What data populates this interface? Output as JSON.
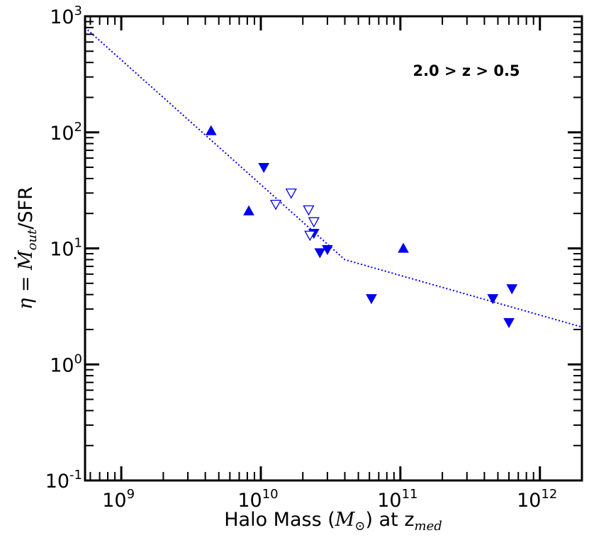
{
  "chart_data": {
    "type": "scatter",
    "title": "",
    "xlabel": {
      "prefix": "Halo Mass (",
      "symbol": "M",
      "sub": "⊙",
      "suffix": ") at z",
      "zsub": "med"
    },
    "ylabel": {
      "prefix": "η = ",
      "symbol": "Ṁ",
      "sub": "out",
      "suffix": "/SFR"
    },
    "xscale": "log",
    "yscale": "log",
    "xlim": [
      550000000.0,
      2000000000000.0
    ],
    "ylim": [
      0.1,
      1000
    ],
    "xticks": [
      {
        "base": "10",
        "exp": "9",
        "value": 1000000000.0
      },
      {
        "base": "10",
        "exp": "10",
        "value": 10000000000.0
      },
      {
        "base": "10",
        "exp": "11",
        "value": 100000000000.0
      },
      {
        "base": "10",
        "exp": "12",
        "value": 1000000000000.0
      }
    ],
    "yticks": [
      {
        "base": "10",
        "exp": "-1",
        "value": 0.1
      },
      {
        "base": "10",
        "exp": "0",
        "value": 1
      },
      {
        "base": "10",
        "exp": "1",
        "value": 10
      },
      {
        "base": "10",
        "exp": "2",
        "value": 100
      },
      {
        "base": "10",
        "exp": "3",
        "value": 1000
      }
    ],
    "annotation": "2.0 > z > 0.5",
    "color": "#0000ee",
    "series": [
      {
        "name": "lower limits (filled up-triangle)",
        "marker": "triangle-up",
        "filled": true,
        "x": [
          4400000000.0,
          8200000000.0,
          105000000000.0
        ],
        "y": [
          103,
          21,
          10
        ]
      },
      {
        "name": "upper limits (filled down-triangle)",
        "marker": "triangle-down",
        "filled": true,
        "x": [
          10500000000.0,
          24000000000.0,
          26500000000.0,
          30000000000.0,
          62000000000.0,
          460000000000.0,
          630000000000.0,
          600000000000.0
        ],
        "y": [
          50,
          13.5,
          9.2,
          9.8,
          3.7,
          3.7,
          4.5,
          2.3
        ]
      },
      {
        "name": "upper limits (open down-triangle)",
        "marker": "triangle-down",
        "filled": false,
        "x": [
          12800000000.0,
          16500000000.0,
          22000000000.0,
          24000000000.0,
          22500000000.0
        ],
        "y": [
          24,
          30,
          21.5,
          17,
          13
        ]
      },
      {
        "name": "fit",
        "type": "line",
        "style": "dotted",
        "x": [
          550000000.0,
          40000000000.0,
          2000000000000.0
        ],
        "y": [
          800,
          8.0,
          2.1
        ]
      }
    ]
  }
}
